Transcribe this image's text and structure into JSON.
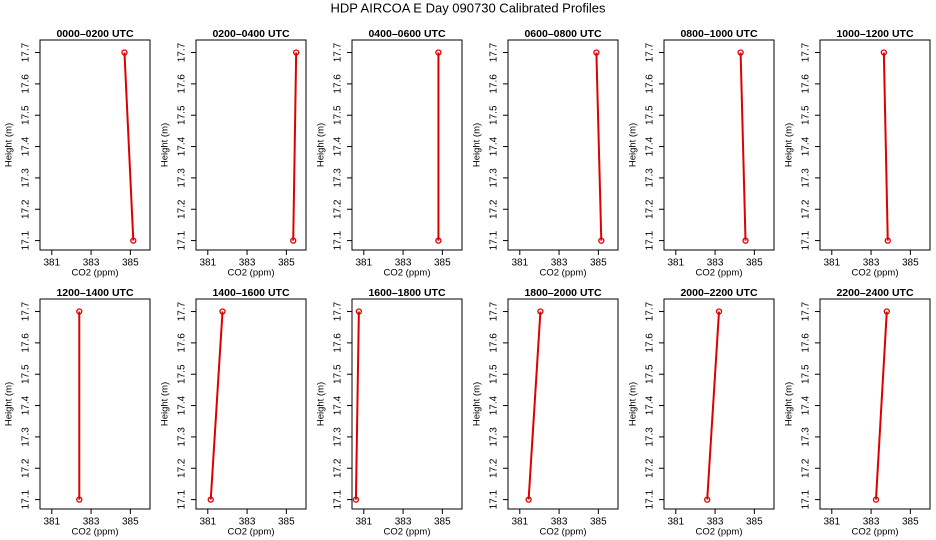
{
  "title": "HDP AIRCOA E  Day 090730  Calibrated Profiles",
  "chart_data": [
    {
      "type": "line",
      "title": "0000–0200 UTC",
      "x_label": "CO2 (ppm)",
      "y_label": "Height (m)",
      "x": [
        384.7,
        385.15
      ],
      "y": [
        17.7,
        17.1
      ],
      "color": "#dd0000",
      "xlim": [
        380.4,
        386.0
      ],
      "ylim": [
        17.07,
        17.74
      ],
      "xticks": [
        381,
        383,
        385
      ],
      "yticks": [
        17.1,
        17.2,
        17.3,
        17.4,
        17.5,
        17.6,
        17.7
      ]
    },
    {
      "type": "line",
      "title": "0200–0400 UTC",
      "x_label": "CO2 (ppm)",
      "y_label": "Height (m)",
      "x": [
        385.5,
        385.35
      ],
      "y": [
        17.7,
        17.1
      ],
      "color": "#dd0000",
      "xlim": [
        380.4,
        386.0
      ],
      "ylim": [
        17.07,
        17.74
      ],
      "xticks": [
        381,
        383,
        385
      ],
      "yticks": [
        17.1,
        17.2,
        17.3,
        17.4,
        17.5,
        17.6,
        17.7
      ]
    },
    {
      "type": "line",
      "title": "0400–0600 UTC",
      "x_label": "CO2 (ppm)",
      "y_label": "Height (m)",
      "x": [
        384.8,
        384.8
      ],
      "y": [
        17.7,
        17.1
      ],
      "color": "#dd0000",
      "xlim": [
        380.4,
        386.0
      ],
      "ylim": [
        17.07,
        17.74
      ],
      "xticks": [
        381,
        383,
        385
      ],
      "yticks": [
        17.1,
        17.2,
        17.3,
        17.4,
        17.5,
        17.6,
        17.7
      ]
    },
    {
      "type": "line",
      "title": "0600–0800 UTC",
      "x_label": "CO2 (ppm)",
      "y_label": "Height (m)",
      "x": [
        384.9,
        385.15
      ],
      "y": [
        17.7,
        17.1
      ],
      "color": "#dd0000",
      "xlim": [
        380.4,
        386.0
      ],
      "ylim": [
        17.07,
        17.74
      ],
      "xticks": [
        381,
        383,
        385
      ],
      "yticks": [
        17.1,
        17.2,
        17.3,
        17.4,
        17.5,
        17.6,
        17.7
      ]
    },
    {
      "type": "line",
      "title": "0800–1000 UTC",
      "x_label": "CO2 (ppm)",
      "y_label": "Height (m)",
      "x": [
        384.3,
        384.55
      ],
      "y": [
        17.7,
        17.1
      ],
      "color": "#dd0000",
      "xlim": [
        380.4,
        386.0
      ],
      "ylim": [
        17.07,
        17.74
      ],
      "xticks": [
        381,
        383,
        385
      ],
      "yticks": [
        17.1,
        17.2,
        17.3,
        17.4,
        17.5,
        17.6,
        17.7
      ]
    },
    {
      "type": "line",
      "title": "1000–1200 UTC",
      "x_label": "CO2 (ppm)",
      "y_label": "Height (m)",
      "x": [
        383.65,
        383.85
      ],
      "y": [
        17.7,
        17.1
      ],
      "color": "#dd0000",
      "xlim": [
        380.4,
        386.0
      ],
      "ylim": [
        17.07,
        17.74
      ],
      "xticks": [
        381,
        383,
        385
      ],
      "yticks": [
        17.1,
        17.2,
        17.3,
        17.4,
        17.5,
        17.6,
        17.7
      ]
    },
    {
      "type": "line",
      "title": "1200–1400 UTC",
      "x_label": "CO2 (ppm)",
      "y_label": "Height (m)",
      "x": [
        382.4,
        382.4
      ],
      "y": [
        17.7,
        17.1
      ],
      "color": "#dd0000",
      "xlim": [
        380.4,
        386.0
      ],
      "ylim": [
        17.07,
        17.74
      ],
      "xticks": [
        381,
        383,
        385
      ],
      "yticks": [
        17.1,
        17.2,
        17.3,
        17.4,
        17.5,
        17.6,
        17.7
      ]
    },
    {
      "type": "line",
      "title": "1400–1600 UTC",
      "x_label": "CO2 (ppm)",
      "y_label": "Height (m)",
      "x": [
        381.75,
        381.15
      ],
      "y": [
        17.7,
        17.1
      ],
      "color": "#dd0000",
      "xlim": [
        380.4,
        386.0
      ],
      "ylim": [
        17.07,
        17.74
      ],
      "xticks": [
        381,
        383,
        385
      ],
      "yticks": [
        17.1,
        17.2,
        17.3,
        17.4,
        17.5,
        17.6,
        17.7
      ]
    },
    {
      "type": "line",
      "title": "1600–1800 UTC",
      "x_label": "CO2 (ppm)",
      "y_label": "Height (m)",
      "x": [
        380.75,
        380.6
      ],
      "y": [
        17.7,
        17.1
      ],
      "color": "#dd0000",
      "xlim": [
        380.4,
        386.0
      ],
      "ylim": [
        17.07,
        17.74
      ],
      "xticks": [
        381,
        383,
        385
      ],
      "yticks": [
        17.1,
        17.2,
        17.3,
        17.4,
        17.5,
        17.6,
        17.7
      ]
    },
    {
      "type": "line",
      "title": "1800–2000 UTC",
      "x_label": "CO2 (ppm)",
      "y_label": "Height (m)",
      "x": [
        382.05,
        381.45
      ],
      "y": [
        17.7,
        17.1
      ],
      "color": "#dd0000",
      "xlim": [
        380.4,
        386.0
      ],
      "ylim": [
        17.07,
        17.74
      ],
      "xticks": [
        381,
        383,
        385
      ],
      "yticks": [
        17.1,
        17.2,
        17.3,
        17.4,
        17.5,
        17.6,
        17.7
      ]
    },
    {
      "type": "line",
      "title": "2000–2200 UTC",
      "x_label": "CO2 (ppm)",
      "y_label": "Height (m)",
      "x": [
        383.2,
        382.6
      ],
      "y": [
        17.7,
        17.1
      ],
      "color": "#dd0000",
      "xlim": [
        380.4,
        386.0
      ],
      "ylim": [
        17.07,
        17.74
      ],
      "xticks": [
        381,
        383,
        385
      ],
      "yticks": [
        17.1,
        17.2,
        17.3,
        17.4,
        17.5,
        17.6,
        17.7
      ]
    },
    {
      "type": "line",
      "title": "2200–2400 UTC",
      "x_label": "CO2 (ppm)",
      "y_label": "Height (m)",
      "x": [
        383.8,
        383.25
      ],
      "y": [
        17.7,
        17.1
      ],
      "color": "#dd0000",
      "xlim": [
        380.4,
        386.0
      ],
      "ylim": [
        17.07,
        17.74
      ],
      "xticks": [
        381,
        383,
        385
      ],
      "yticks": [
        17.1,
        17.2,
        17.3,
        17.4,
        17.5,
        17.6,
        17.7
      ]
    }
  ]
}
